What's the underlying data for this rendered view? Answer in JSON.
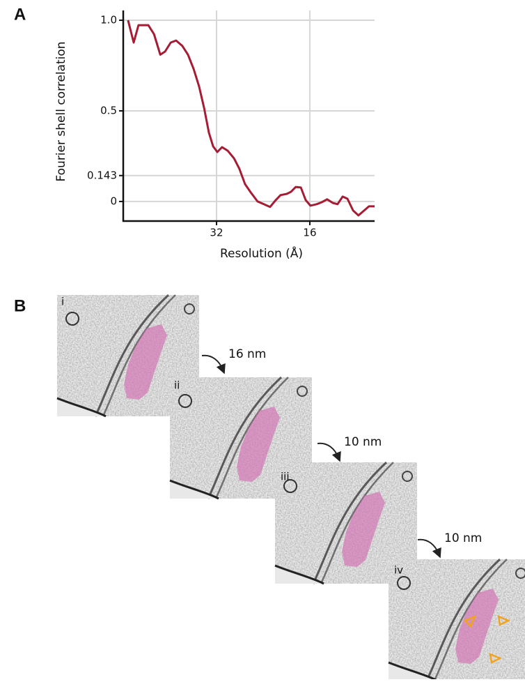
{
  "panels": [
    "A",
    "B"
  ],
  "chart_data": {
    "type": "line",
    "xlabel": "Resolution (Å)",
    "ylabel": "Fourier shell correlation",
    "color": "#a51c34",
    "grid": true,
    "x": [
      0.0016,
      0.0035,
      0.0051,
      0.0084,
      0.0103,
      0.0124,
      0.014,
      0.0159,
      0.0177,
      0.0198,
      0.0217,
      0.0236,
      0.0254,
      0.0271,
      0.0287,
      0.0301,
      0.0315,
      0.0331,
      0.035,
      0.0371,
      0.0389,
      0.0408,
      0.0427,
      0.045,
      0.0471,
      0.0492,
      0.0511,
      0.0527,
      0.0548,
      0.0562,
      0.0578,
      0.0595,
      0.0611,
      0.0627,
      0.0648,
      0.0665,
      0.0683,
      0.0702,
      0.0718,
      0.0735,
      0.0751,
      0.077,
      0.0788,
      0.0807,
      0.0823,
      0.0842
    ],
    "values": [
      1.0,
      0.877,
      0.973,
      0.973,
      0.923,
      0.81,
      0.827,
      0.877,
      0.888,
      0.858,
      0.81,
      0.73,
      0.635,
      0.515,
      0.38,
      0.304,
      0.273,
      0.3,
      0.28,
      0.238,
      0.18,
      0.096,
      0.05,
      0,
      -0.015,
      -0.03,
      0.008,
      0.035,
      0.042,
      0.054,
      0.08,
      0.077,
      0.008,
      -0.023,
      -0.015,
      -0.004,
      0.012,
      -0.008,
      -0.015,
      0.027,
      0.015,
      -0.05,
      -0.077,
      -0.05,
      -0.027,
      -0.027
    ],
    "xlim": [
      0,
      0.0842
    ],
    "xticks": [
      {
        "value": 0.03125,
        "label": "32"
      },
      {
        "value": 0.0625,
        "label": "16"
      }
    ],
    "ylim": [
      -0.108,
      1.054
    ],
    "yticks": [
      {
        "value": 1.0,
        "label": "1.0"
      },
      0.5,
      0.143,
      0
    ]
  },
  "tomograms": [
    "i",
    "ii",
    "iii",
    "iv"
  ],
  "steps": [
    "16 nm",
    "10 nm",
    "10 nm"
  ]
}
